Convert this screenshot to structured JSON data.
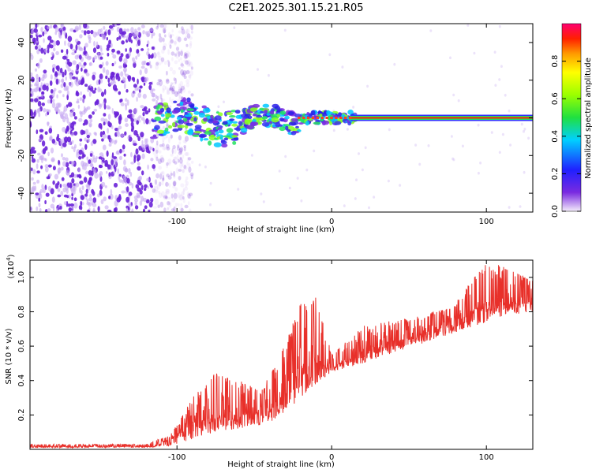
{
  "title": "C2E1.2025.301.15.21.R05",
  "colors": {
    "snr_line": "#e8302a",
    "scatter": "#6b2bd6",
    "frame": "#000000"
  },
  "chart_data": [
    {
      "type": "heatmap",
      "name": "spectrogram",
      "xlabel": "Height of straight line (km)",
      "ylabel": "Frequency (Hz)",
      "xlim": [
        -195,
        130
      ],
      "ylim": [
        -50,
        50
      ],
      "xticks": [
        -100,
        0,
        100
      ],
      "yticks": [
        -40,
        -20,
        0,
        20,
        40
      ],
      "xtick_labels": [
        "-100",
        "0",
        "100"
      ],
      "ytick_labels": [
        "-40",
        "-20",
        "0",
        "20",
        "40"
      ],
      "colorbar": {
        "label": "Normalized spectral amplitude",
        "range": [
          0,
          1
        ],
        "ticks": [
          0.0,
          0.2,
          0.4,
          0.6,
          0.8
        ],
        "tick_labels": [
          "0.0",
          "0.2",
          "0.4",
          "0.6",
          "0.8"
        ]
      },
      "features": {
        "noise_region_x": [
          -195,
          -110
        ],
        "transition_region_x": [
          -115,
          15
        ],
        "tone_start_x": 12,
        "tone_frequency_hz": 0
      }
    },
    {
      "type": "line",
      "name": "snr",
      "xlabel": "Height of straight line (km)",
      "ylabel": "SNR (10 * v/v)",
      "scale_label": "(x10",
      "scale_exponent": "4",
      "xlim": [
        -195,
        130
      ],
      "ylim": [
        0,
        1.1
      ],
      "xticks": [
        -100,
        0,
        100
      ],
      "yticks": [
        0.2,
        0.4,
        0.6,
        0.8,
        1.0
      ],
      "xtick_labels": [
        "-100",
        "0",
        "100"
      ],
      "ytick_labels": [
        "0.2",
        "0.4",
        "0.6",
        "0.8",
        "1.0"
      ],
      "envelope": {
        "x": [
          -195,
          -120,
          -105,
          -90,
          -75,
          -60,
          -45,
          -30,
          -20,
          -10,
          0,
          20,
          40,
          60,
          80,
          100,
          115,
          130
        ],
        "base": [
          0.01,
          0.01,
          0.02,
          0.06,
          0.1,
          0.12,
          0.14,
          0.2,
          0.3,
          0.38,
          0.45,
          0.5,
          0.56,
          0.62,
          0.68,
          0.74,
          0.78,
          0.8
        ],
        "peak": [
          0.03,
          0.03,
          0.08,
          0.3,
          0.45,
          0.4,
          0.35,
          0.62,
          0.85,
          0.9,
          0.55,
          0.72,
          0.75,
          0.78,
          0.85,
          1.1,
          1.05,
          0.98
        ]
      }
    }
  ]
}
